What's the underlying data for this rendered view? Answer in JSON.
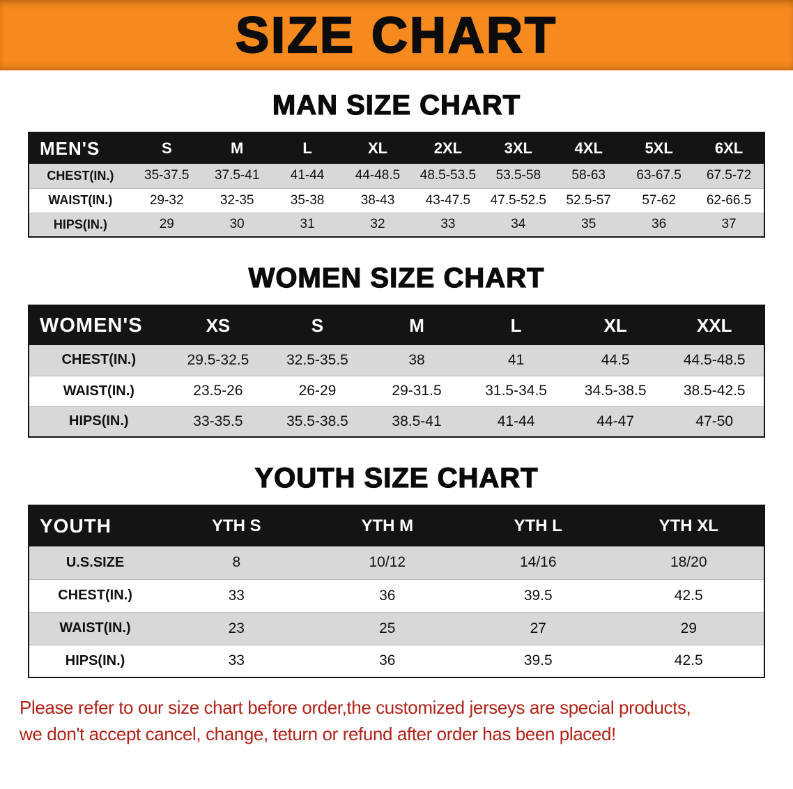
{
  "banner": {
    "title": "SIZE CHART"
  },
  "sections": [
    {
      "heading": "MAN SIZE CHART",
      "table": {
        "corner": "MEN'S",
        "sizes": [
          "S",
          "M",
          "L",
          "XL",
          "2XL",
          "3XL",
          "4XL",
          "5XL",
          "6XL"
        ],
        "rows": [
          {
            "label": "CHEST(IN.)",
            "values": [
              "35-37.5",
              "37.5-41",
              "41-44",
              "44-48.5",
              "48.5-53.5",
              "53.5-58",
              "58-63",
              "63-67.5",
              "67.5-72"
            ]
          },
          {
            "label": "WAIST(IN.)",
            "values": [
              "29-32",
              "32-35",
              "35-38",
              "38-43",
              "43-47.5",
              "47.5-52.5",
              "52.5-57",
              "57-62",
              "62-66.5"
            ]
          },
          {
            "label": "HIPS(IN.)",
            "values": [
              "29",
              "30",
              "31",
              "32",
              "33",
              "34",
              "35",
              "36",
              "37"
            ]
          }
        ]
      }
    },
    {
      "heading": "WOMEN SIZE CHART",
      "table": {
        "corner": "WOMEN'S",
        "sizes": [
          "XS",
          "S",
          "M",
          "L",
          "XL",
          "XXL"
        ],
        "rows": [
          {
            "label": "CHEST(IN.)",
            "values": [
              "29.5-32.5",
              "32.5-35.5",
              "38",
              "41",
              "44.5",
              "44.5-48.5"
            ]
          },
          {
            "label": "WAIST(IN.)",
            "values": [
              "23.5-26",
              "26-29",
              "29-31.5",
              "31.5-34.5",
              "34.5-38.5",
              "38.5-42.5"
            ]
          },
          {
            "label": "HIPS(IN.)",
            "values": [
              "33-35.5",
              "35.5-38.5",
              "38.5-41",
              "41-44",
              "44-47",
              "47-50"
            ]
          }
        ]
      }
    },
    {
      "heading": "YOUTH SIZE CHART",
      "table": {
        "corner": "YOUTH",
        "sizes": [
          "YTH S",
          "YTH M",
          "YTH L",
          "YTH XL"
        ],
        "rows": [
          {
            "label": "U.S.SIZE",
            "values": [
              "8",
              "10/12",
              "14/16",
              "18/20"
            ]
          },
          {
            "label": "CHEST(IN.)",
            "values": [
              "33",
              "36",
              "39.5",
              "42.5"
            ]
          },
          {
            "label": "WAIST(IN.)",
            "values": [
              "23",
              "25",
              "27",
              "29"
            ]
          },
          {
            "label": "HIPS(IN.)",
            "values": [
              "33",
              "36",
              "39.5",
              "42.5"
            ]
          }
        ]
      }
    }
  ],
  "footer": {
    "line1": "Please refer to our size chart before order,the customized jerseys are special products,",
    "line2": "we don't accept cancel, change, teturn or refund after order has been placed!"
  },
  "colors": {
    "banner_bg": "#f68a1e",
    "header_bg": "#141414",
    "row_alt_bg": "#d8d8d8",
    "footer_text": "#b02318"
  }
}
